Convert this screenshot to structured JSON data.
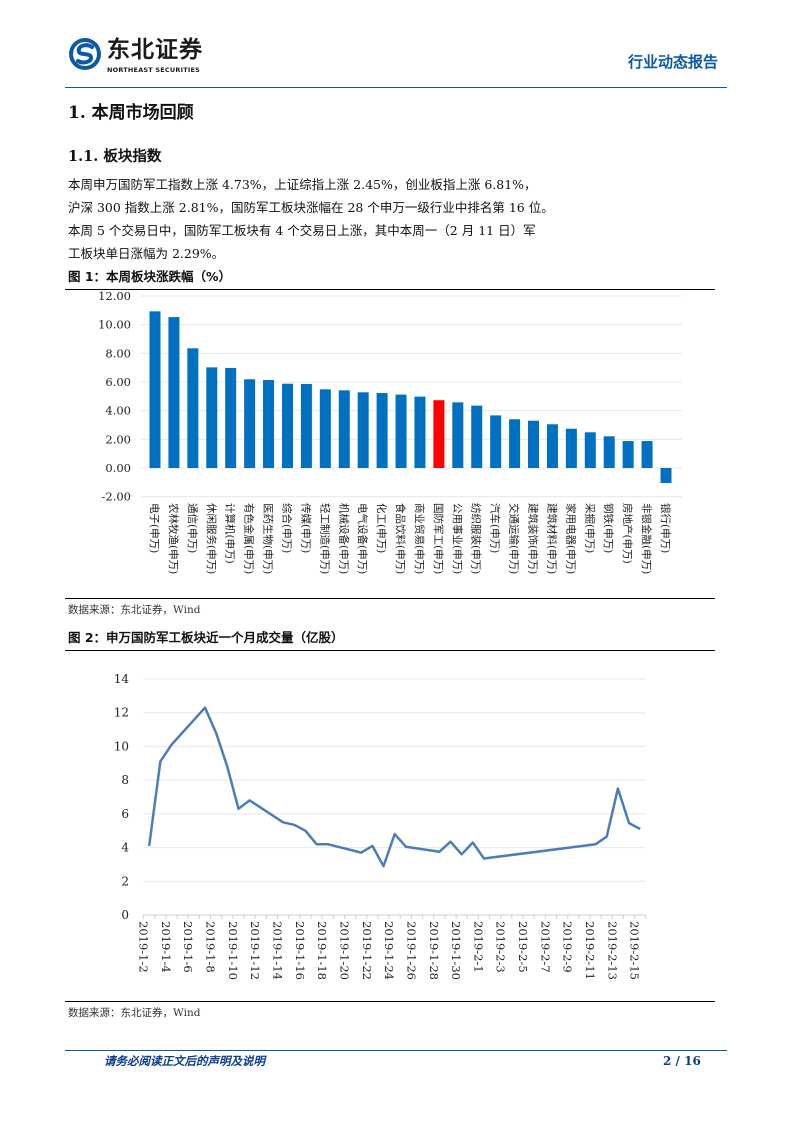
{
  "header": {
    "brand_cn": "东北证券",
    "brand_en": "NORTHEAST SECURITIES",
    "report_type": "行业动态报告",
    "accent": "#0a5aa6"
  },
  "section": {
    "h1": "1.  本周市场回顾",
    "h2": "1.1.   板块指数"
  },
  "paragraph": [
    "本周申万国防军工指数上涨 4.73%，上证综指上涨 2.45%，创业板指上涨 6.81%，",
    "沪深 300 指数上涨 2.81%，国防军工板块涨幅在 28 个申万一级行业中排名第 16 位。",
    "本周 5 个交易日中，国防军工板块有 4 个交易日上涨，其中本周一（2 月 11 日）军",
    "工板块单日涨幅为 2.29%。"
  ],
  "figure1": {
    "caption": "图 1：本周板块涨跌幅（%）",
    "source": "数据来源：东北证券，Wind"
  },
  "figure2": {
    "caption": "图 2：申万国防军工板块近一个月成交量（亿股）",
    "source": "数据来源：东北证券，Wind"
  },
  "footer": {
    "disclaimer": "请务必阅读正文后的声明及说明",
    "page": "2 / 16"
  },
  "chart_data": [
    {
      "type": "bar",
      "title": "本周板块涨跌幅（%）",
      "categories": [
        "电子(申万)",
        "农林牧渔(申万)",
        "通信(申万)",
        "休闲服务(申万)",
        "计算机(申万)",
        "有色金属(申万)",
        "医药生物(申万)",
        "综合(申万)",
        "传媒(申万)",
        "轻工制造(申万)",
        "机械设备(申万)",
        "电气设备(申万)",
        "化工(申万)",
        "食品饮料(申万)",
        "商业贸易(申万)",
        "国防军工(申万)",
        "公用事业(申万)",
        "纺织服装(申万)",
        "汽车(申万)",
        "交通运输(申万)",
        "建筑装饰(申万)",
        "建筑材料(申万)",
        "家用电器(申万)",
        "采掘(申万)",
        "钢铁(申万)",
        "房地产(申万)",
        "非银金融(申万)",
        "银行(申万)"
      ],
      "values": [
        10.93,
        10.53,
        8.35,
        7.02,
        6.98,
        6.19,
        6.14,
        5.88,
        5.86,
        5.49,
        5.42,
        5.28,
        5.23,
        5.12,
        4.98,
        4.73,
        4.58,
        4.35,
        3.67,
        3.4,
        3.3,
        3.05,
        2.74,
        2.49,
        2.21,
        1.88,
        1.88,
        -1.05
      ],
      "highlight": "国防军工(申万)",
      "ylim": [
        -2,
        12
      ],
      "yticks": [
        "-2.00",
        "0.00",
        "2.00",
        "4.00",
        "6.00",
        "8.00",
        "10.00",
        "12.00"
      ],
      "grid": true,
      "colors": {
        "bar": "#0070c0",
        "highlight": "#ff0000",
        "grid": "#e8e8e8"
      }
    },
    {
      "type": "line",
      "title": "申万国防军工板块近一个月成交量（亿股）",
      "x": [
        "2019-1-2",
        "2019-1-3",
        "2019-1-4",
        "2019-1-7",
        "2019-1-8",
        "2019-1-9",
        "2019-1-10",
        "2019-1-11",
        "2019-1-14",
        "2019-1-15",
        "2019-1-16",
        "2019-1-17",
        "2019-1-18",
        "2019-1-21",
        "2019-1-22",
        "2019-1-23",
        "2019-1-24",
        "2019-1-25",
        "2019-1-28",
        "2019-1-29",
        "2019-1-30",
        "2019-1-31",
        "2019-2-1",
        "2019-2-11",
        "2019-2-12",
        "2019-2-13",
        "2019-2-14",
        "2019-2-15"
      ],
      "values": [
        4.1,
        9.1,
        10.1,
        12.3,
        10.8,
        8.8,
        6.3,
        6.8,
        5.5,
        5.35,
        5.0,
        4.2,
        4.2,
        3.7,
        4.1,
        2.9,
        4.8,
        4.05,
        3.75,
        4.35,
        3.6,
        4.3,
        3.35,
        4.2,
        4.65,
        7.5,
        5.45,
        5.1
      ],
      "xticks": [
        "2019-1-2",
        "2019-1-4",
        "2019-1-6",
        "2019-1-8",
        "2019-1-10",
        "2019-1-12",
        "2019-1-14",
        "2019-1-16",
        "2019-1-18",
        "2019-1-20",
        "2019-1-22",
        "2019-1-24",
        "2019-1-26",
        "2019-1-28",
        "2019-1-30",
        "2019-2-1",
        "2019-2-3",
        "2019-2-5",
        "2019-2-7",
        "2019-2-9",
        "2019-2-11",
        "2019-2-13",
        "2019-2-15"
      ],
      "ylim": [
        0,
        14
      ],
      "yticks": [
        "0",
        "2",
        "4",
        "6",
        "8",
        "10",
        "12",
        "14"
      ],
      "grid": true,
      "colors": {
        "line": "#4a7ebb",
        "grid": "#e8e8e8"
      }
    }
  ]
}
